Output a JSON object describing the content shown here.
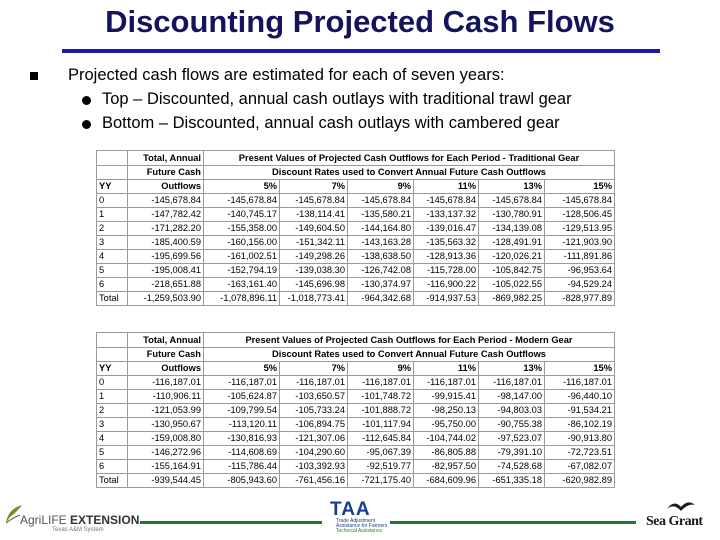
{
  "slide": {
    "title": "Discounting Projected Cash Flows",
    "bullet_main": "Projected cash flows are estimated for each of seven years:",
    "sub_bullets": [
      "Top – Discounted, annual cash outlays with traditional trawl gear",
      "Bottom – Discounted, annual cash outlays with cambered gear"
    ]
  },
  "tables": {
    "traditional": {
      "head_a": "Total, Annual",
      "head_b": "Future Cash",
      "head_c": "Outflows",
      "yy": "YY",
      "pv_title": "Present Values of Projected Cash Outflows for Each Period - Traditional Gear",
      "rates_title": "Discount Rates used to Convert Annual Future Cash Outflows",
      "rates": [
        "5%",
        "7%",
        "9%",
        "11%",
        "13%",
        "15%"
      ],
      "rows": [
        {
          "yy": "0",
          "fcf": "-145,678.84",
          "v": [
            "-145,678.84",
            "-145,678.84",
            "-145,678.84",
            "-145,678.84",
            "-145,678.84",
            "-145,678.84"
          ]
        },
        {
          "yy": "1",
          "fcf": "-147,782.42",
          "v": [
            "-140,745.17",
            "-138,114.41",
            "-135,580.21",
            "-133,137.32",
            "-130,780.91",
            "-128,506.45"
          ]
        },
        {
          "yy": "2",
          "fcf": "-171,282.20",
          "v": [
            "-155,358.00",
            "-149,604.50",
            "-144,164.80",
            "-139,016.47",
            "-134,139.08",
            "-129,513.95"
          ]
        },
        {
          "yy": "3",
          "fcf": "-185,400.59",
          "v": [
            "-160,156.00",
            "-151,342.11",
            "-143,163.28",
            "-135,563.32",
            "-128,491.91",
            "-121,903.90"
          ]
        },
        {
          "yy": "4",
          "fcf": "-195,699.56",
          "v": [
            "-161,002.51",
            "-149,298.26",
            "-138,638.50",
            "-128,913.36",
            "-120,026.21",
            "-111,891.86"
          ]
        },
        {
          "yy": "5",
          "fcf": "-195,008.41",
          "v": [
            "-152,794.19",
            "-139,038.30",
            "-126,742.08",
            "-115,728.00",
            "-105,842.75",
            "-96,953.64"
          ]
        },
        {
          "yy": "6",
          "fcf": "-218,651.88",
          "v": [
            "-163,161.40",
            "-145,696.98",
            "-130,374.97",
            "-116,900.22",
            "-105,022.55",
            "-94,529.24"
          ]
        },
        {
          "yy": "Total",
          "fcf": "-1,259,503.90",
          "v": [
            "-1,078,896.11",
            "-1,018,773.41",
            "-964,342.68",
            "-914,937.53",
            "-869,982.25",
            "-828,977.89"
          ]
        }
      ]
    },
    "modern": {
      "head_a": "Total, Annual",
      "head_b": "Future Cash",
      "head_c": "Outflows",
      "yy": "YY",
      "pv_title": "Present Values of Projected Cash Outflows for Each Period - Modern Gear",
      "rates_title": "Discount Rates used to Convert Annual Future Cash Outflows",
      "rates": [
        "5%",
        "7%",
        "9%",
        "11%",
        "13%",
        "15%"
      ],
      "rows": [
        {
          "yy": "0",
          "fcf": "-116,187.01",
          "v": [
            "-116,187.01",
            "-116,187.01",
            "-116,187.01",
            "-116,187.01",
            "-116,187.01",
            "-116,187.01"
          ]
        },
        {
          "yy": "1",
          "fcf": "-110,906.11",
          "v": [
            "-105,624.87",
            "-103,650.57",
            "-101,748.72",
            "-99,915.41",
            "-98,147.00",
            "-96,440.10"
          ]
        },
        {
          "yy": "2",
          "fcf": "-121,053.99",
          "v": [
            "-109,799.54",
            "-105,733.24",
            "-101,888.72",
            "-98,250.13",
            "-94,803.03",
            "-91,534.21"
          ]
        },
        {
          "yy": "3",
          "fcf": "-130,950.67",
          "v": [
            "-113,120.11",
            "-106,894.75",
            "-101,117.94",
            "-95,750.00",
            "-90,755.38",
            "-86,102.19"
          ]
        },
        {
          "yy": "4",
          "fcf": "-159,008.80",
          "v": [
            "-130,816.93",
            "-121,307.06",
            "-112,645.84",
            "-104,744.02",
            "-97,523.07",
            "-90,913.80"
          ]
        },
        {
          "yy": "5",
          "fcf": "-146,272.96",
          "v": [
            "-114,608.69",
            "-104,290.60",
            "-95,067.39",
            "-86,805.88",
            "-79,391.10",
            "-72,723.51"
          ]
        },
        {
          "yy": "6",
          "fcf": "-155,164.91",
          "v": [
            "-115,786.44",
            "-103,392.93",
            "-92,519.77",
            "-82,957.50",
            "-74,528.68",
            "-67,082.07"
          ]
        },
        {
          "yy": "Total",
          "fcf": "-939,544.45",
          "v": [
            "-805,943.60",
            "-761,456.16",
            "-721,175.40",
            "-684,609.96",
            "-651,335.18",
            "-620,982.89"
          ]
        }
      ]
    }
  },
  "logos": {
    "agrilife_name": "AgriLIFE",
    "agrilife_ext": "EXTENSION",
    "agrilife_sub": "Texas A&M System",
    "taa_mark": "TAA",
    "taa_line1": "Trade Adjustment",
    "taa_line2": "Assistance for Farmers",
    "taa_line3": "Technical Assistance",
    "seagrant": "Sea Grant"
  },
  "colors": {
    "title": "#14145e",
    "title_rule": "#1a1aa8",
    "footer_rule": "#1f7a2e",
    "table_border": "#9a9a9a"
  },
  "icons": [
    "square-bullet-icon",
    "round-bullet-icon",
    "seagull-icon",
    "agrilife-leaf-icon"
  ]
}
